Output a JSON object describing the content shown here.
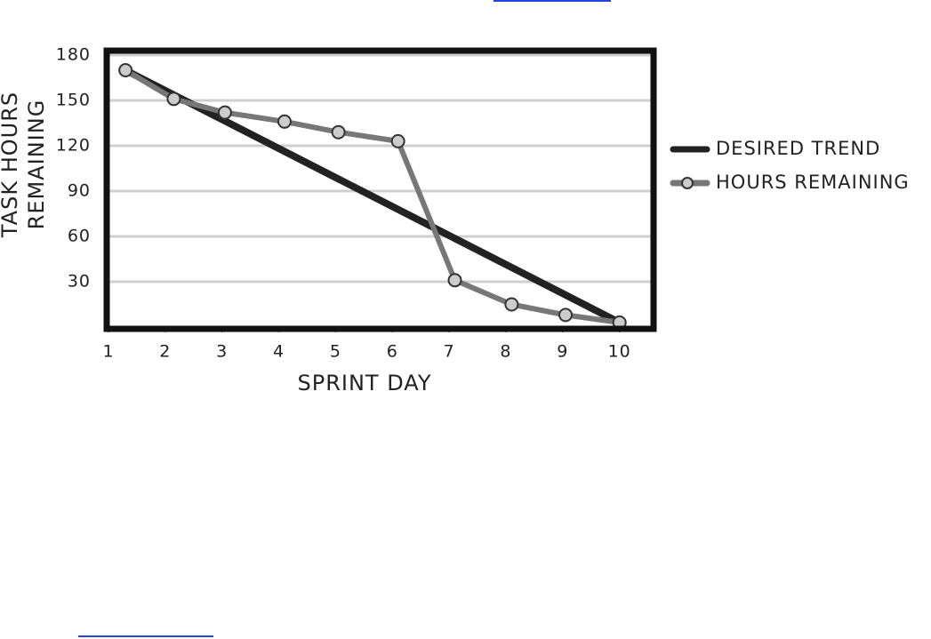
{
  "chart_data": {
    "type": "line",
    "x_label": "SPRINT DAY",
    "y_label": [
      "TASK HOURS",
      "REMAINING"
    ],
    "xlim": [
      1,
      10.6
    ],
    "xticks": [
      1,
      2,
      3,
      4,
      5,
      6,
      7,
      8,
      9,
      10
    ],
    "ylim": [
      0,
      180
    ],
    "yticks": [
      30,
      60,
      90,
      120,
      150,
      180
    ],
    "grid": true,
    "legend": "right",
    "series": [
      {
        "name": "DESIRED TREND",
        "color": "#222222",
        "markers": false,
        "x": [
          1.3,
          10
        ],
        "values": [
          170,
          3
        ]
      },
      {
        "name": "HOURS REMAINING",
        "color": "#777777",
        "markers": true,
        "marker_color": "#cccccc",
        "x": [
          1.3,
          2.15,
          3.05,
          4.1,
          5.05,
          6.1,
          7.1,
          8.1,
          9.05,
          10
        ],
        "values": [
          170,
          151,
          142,
          136,
          129,
          123,
          31,
          15,
          8,
          3
        ]
      }
    ]
  }
}
